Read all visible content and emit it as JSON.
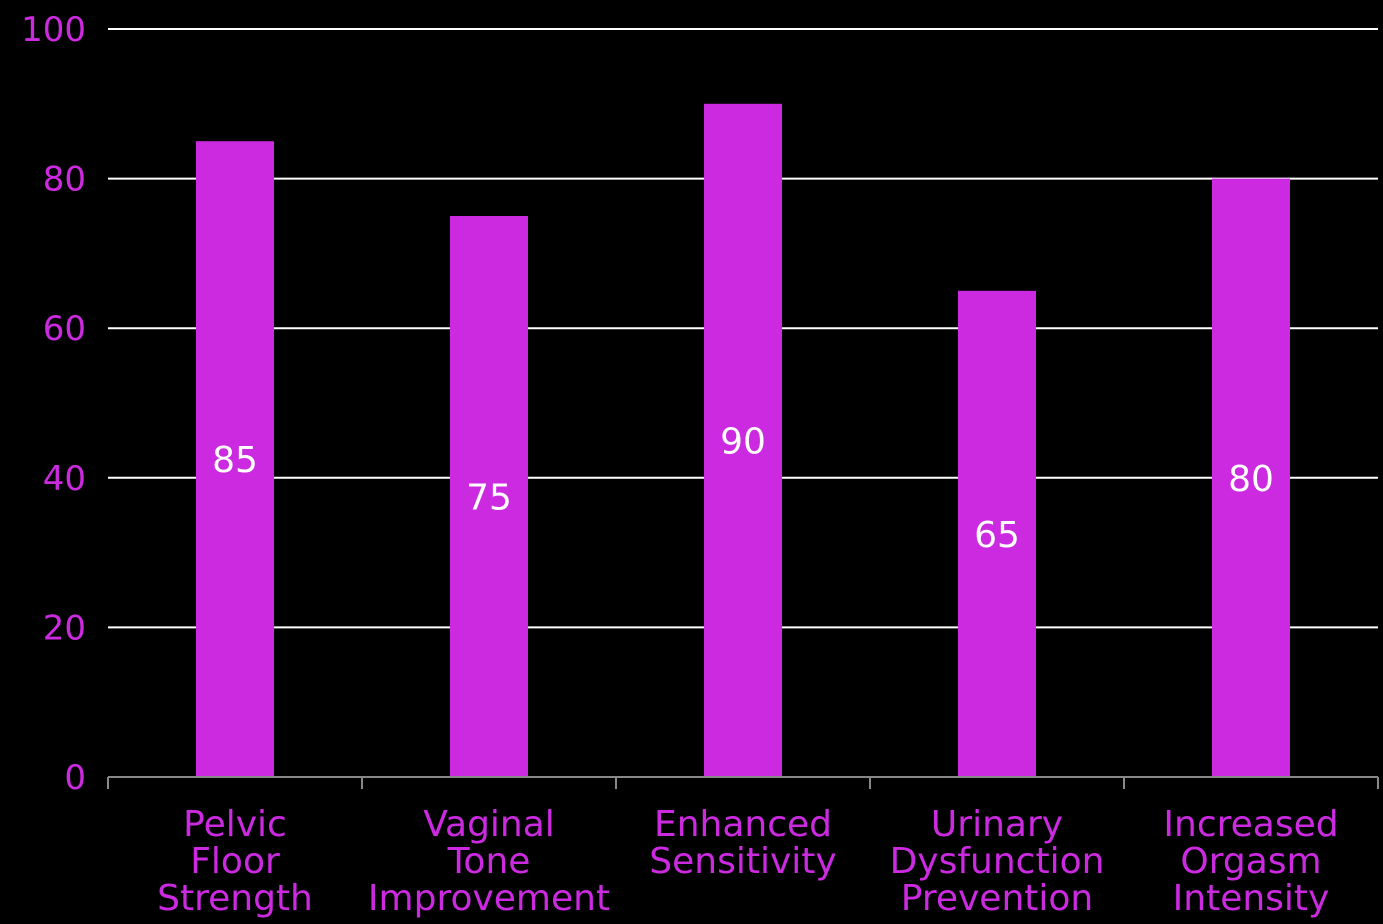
{
  "colors": {
    "background": "#000000",
    "bar": "#cc2ae0",
    "axis_text": "#cc2ae0",
    "grid": "#ffffff",
    "data_label": "#ffffff"
  },
  "chart_data": {
    "type": "bar",
    "categories": [
      [
        "Pelvic",
        "Floor",
        "Strength"
      ],
      [
        "Vaginal",
        "Tone",
        "Improvement"
      ],
      [
        "Enhanced",
        "Sensitivity"
      ],
      [
        "Urinary",
        "Dysfunction",
        "Prevention"
      ],
      [
        "Increased",
        "Orgasm",
        "Intensity"
      ]
    ],
    "values": [
      85,
      75,
      90,
      65,
      80
    ],
    "ylim": [
      0,
      100
    ],
    "yticks": [
      "0",
      "20",
      "40",
      "60",
      "80",
      "100"
    ],
    "grid": true,
    "legend": false
  }
}
